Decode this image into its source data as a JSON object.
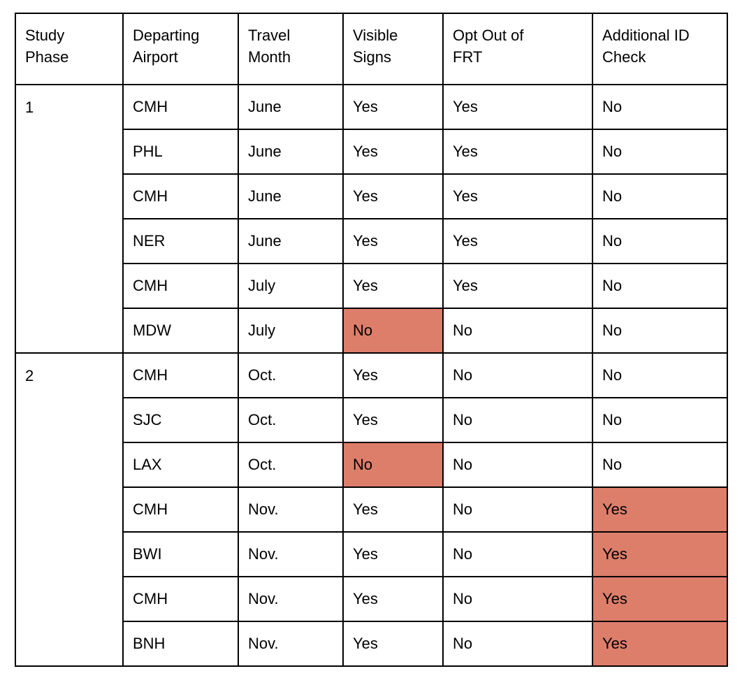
{
  "table": {
    "highlight_color": "#DD7E6B",
    "border_color": "#000000",
    "text_color": "#000000",
    "columns": [
      {
        "label": "Study\nPhase"
      },
      {
        "label": "Departing\nAirport"
      },
      {
        "label": "Travel\nMonth"
      },
      {
        "label": "Visible\nSigns"
      },
      {
        "label": "Opt Out of\nFRT"
      },
      {
        "label": "Additional ID\nCheck"
      }
    ],
    "phases": [
      {
        "label": "1",
        "trips": [
          {
            "airport": "CMH",
            "month": "June",
            "visible_signs": "Yes",
            "opt_out_frt": "Yes",
            "additional_id_check": "No",
            "highlights": []
          },
          {
            "airport": "PHL",
            "month": "June",
            "visible_signs": "Yes",
            "opt_out_frt": "Yes",
            "additional_id_check": "No",
            "highlights": []
          },
          {
            "airport": "CMH",
            "month": "June",
            "visible_signs": "Yes",
            "opt_out_frt": "Yes",
            "additional_id_check": "No",
            "highlights": []
          },
          {
            "airport": "NER",
            "month": "June",
            "visible_signs": "Yes",
            "opt_out_frt": "Yes",
            "additional_id_check": "No",
            "highlights": []
          },
          {
            "airport": "CMH",
            "month": "July",
            "visible_signs": "Yes",
            "opt_out_frt": "Yes",
            "additional_id_check": "No",
            "highlights": []
          },
          {
            "airport": "MDW",
            "month": "July",
            "visible_signs": "No",
            "opt_out_frt": "No",
            "additional_id_check": "No",
            "highlights": [
              "visible_signs"
            ]
          }
        ]
      },
      {
        "label": "2",
        "trips": [
          {
            "airport": "CMH",
            "month": "Oct.",
            "visible_signs": "Yes",
            "opt_out_frt": "No",
            "additional_id_check": "No",
            "highlights": []
          },
          {
            "airport": "SJC",
            "month": "Oct.",
            "visible_signs": "Yes",
            "opt_out_frt": "No",
            "additional_id_check": "No",
            "highlights": []
          },
          {
            "airport": "LAX",
            "month": "Oct.",
            "visible_signs": "No",
            "opt_out_frt": "No",
            "additional_id_check": "No",
            "highlights": [
              "visible_signs"
            ]
          },
          {
            "airport": "CMH",
            "month": "Nov.",
            "visible_signs": "Yes",
            "opt_out_frt": "No",
            "additional_id_check": "Yes",
            "highlights": [
              "additional_id_check"
            ]
          },
          {
            "airport": "BWI",
            "month": "Nov.",
            "visible_signs": "Yes",
            "opt_out_frt": "No",
            "additional_id_check": "Yes",
            "highlights": [
              "additional_id_check"
            ]
          },
          {
            "airport": "CMH",
            "month": "Nov.",
            "visible_signs": "Yes",
            "opt_out_frt": "No",
            "additional_id_check": "Yes",
            "highlights": [
              "additional_id_check"
            ]
          },
          {
            "airport": "BNH",
            "month": "Nov.",
            "visible_signs": "Yes",
            "opt_out_frt": "No",
            "additional_id_check": "Yes",
            "highlights": [
              "additional_id_check"
            ]
          }
        ]
      }
    ]
  }
}
